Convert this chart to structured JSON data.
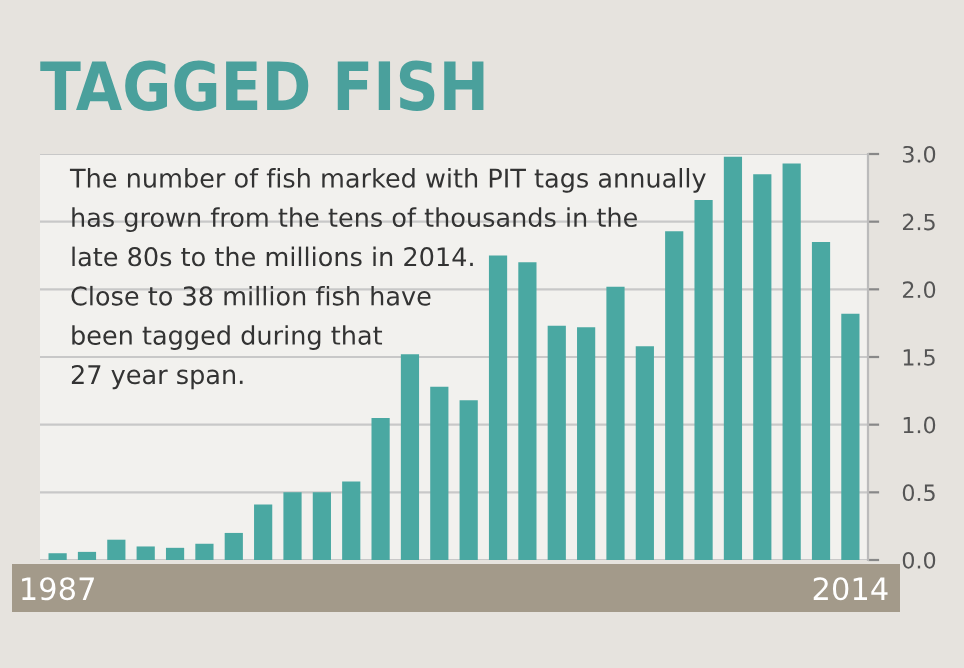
{
  "chart_data": {
    "type": "bar",
    "title": "TAGGED FISH",
    "annotations": [
      "The number of fish marked with PIT tags annually\nhas grown from the tens of thousands in the\nlate 80s to the millions in 2014.\nClose to 38 million fish have\nbeen tagged during that\n27 year span."
    ],
    "categories": [
      "1987",
      null,
      null,
      null,
      null,
      null,
      null,
      null,
      null,
      null,
      null,
      null,
      null,
      null,
      null,
      null,
      null,
      null,
      null,
      null,
      null,
      null,
      null,
      null,
      null,
      null,
      null,
      "2014"
    ],
    "values": [
      0.05,
      0.06,
      0.15,
      0.1,
      0.09,
      0.12,
      0.2,
      0.41,
      0.5,
      0.5,
      0.58,
      1.05,
      1.52,
      1.28,
      1.18,
      2.25,
      2.2,
      1.73,
      1.72,
      2.02,
      1.58,
      2.43,
      2.66,
      2.98,
      2.85,
      2.93,
      2.35,
      1.82
    ],
    "color": "#4aa8a2",
    "ylim": [
      0,
      3.0
    ],
    "yticks": [
      {
        "value": 0,
        "label": "0.0"
      },
      {
        "value": 0.5,
        "label": "0.5"
      },
      {
        "value": 1,
        "label": "1.0"
      },
      {
        "value": 1.5,
        "label": "1.5"
      },
      {
        "value": 2,
        "label": "2.0"
      },
      {
        "value": 2.5,
        "label": "2.5"
      },
      {
        "value": 3,
        "label": "3.0"
      }
    ],
    "grid": "y"
  }
}
